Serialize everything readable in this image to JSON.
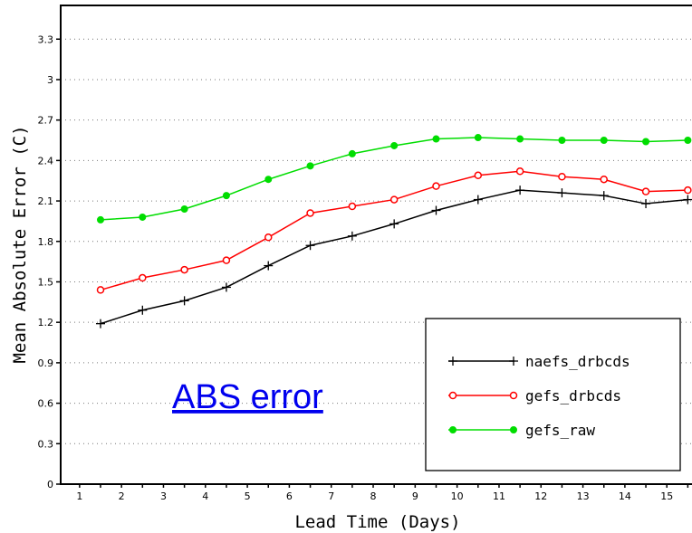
{
  "chart_data": {
    "type": "line",
    "xlabel": "Lead Time (Days)",
    "ylabel": "Mean Absolute Error (C)",
    "x_ticks": [
      "1",
      "2",
      "3",
      "4",
      "5",
      "6",
      "7",
      "8",
      "9",
      "10",
      "11",
      "12",
      "13",
      "14",
      "15"
    ],
    "y_ticks": [
      "0",
      "0.3",
      "0.6",
      "0.9",
      "1.2",
      "1.5",
      "1.8",
      "2.1",
      "2.4",
      "2.7",
      "3",
      "3.3"
    ],
    "xlim": [
      0.55,
      15.6
    ],
    "ylim": [
      0,
      3.55
    ],
    "x": [
      1.5,
      2.5,
      3.5,
      4.5,
      5.5,
      6.5,
      7.5,
      8.5,
      9.5,
      10.5,
      11.5,
      12.5,
      13.5,
      14.5,
      15.5
    ],
    "series": [
      {
        "name": "naefs_drbcds",
        "color": "#000000",
        "marker": "plus",
        "values": [
          1.19,
          1.29,
          1.36,
          1.46,
          1.62,
          1.77,
          1.84,
          1.93,
          2.03,
          2.11,
          2.18,
          2.16,
          2.14,
          2.08,
          2.11
        ]
      },
      {
        "name": "gefs_drbcds",
        "color": "#ff0000",
        "marker": "open-circle",
        "values": [
          1.44,
          1.53,
          1.59,
          1.66,
          1.83,
          2.01,
          2.06,
          2.11,
          2.21,
          2.29,
          2.32,
          2.28,
          2.26,
          2.17,
          2.18
        ]
      },
      {
        "name": "gefs_raw",
        "color": "#00dd00",
        "marker": "filled-circle",
        "values": [
          1.96,
          1.98,
          2.04,
          2.14,
          2.26,
          2.36,
          2.45,
          2.51,
          2.56,
          2.57,
          2.56,
          2.55,
          2.55,
          2.54,
          2.55
        ]
      }
    ],
    "grid": "dotted horizontal",
    "legend_position": "bottom-right",
    "annotation": "ABS error"
  }
}
